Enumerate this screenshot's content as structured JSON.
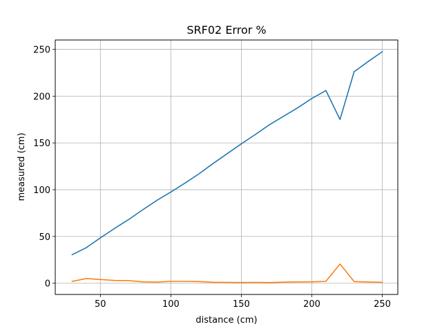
{
  "chart_data": {
    "type": "line",
    "title": "SRF02 Error %",
    "xlabel": "distance (cm)",
    "ylabel": "measured (cm)",
    "xlim": [
      18,
      261
    ],
    "ylim": [
      -12,
      260
    ],
    "xticks": [
      50,
      100,
      150,
      200,
      250
    ],
    "yticks": [
      0,
      50,
      100,
      150,
      200,
      250
    ],
    "grid": true,
    "series": [
      {
        "color": "#1f77b4",
        "x": [
          30,
          40,
          50,
          60,
          70,
          80,
          90,
          100,
          110,
          120,
          130,
          140,
          150,
          160,
          170,
          180,
          190,
          200,
          210,
          220,
          230,
          240,
          250
        ],
        "y": [
          30.5,
          38,
          48.5,
          58.5,
          68,
          78.5,
          88.5,
          97.5,
          107,
          117,
          128,
          138.5,
          149,
          159,
          169.5,
          178.5,
          187.5,
          197.5,
          206,
          175,
          226,
          237,
          247.5
        ]
      },
      {
        "color": "#ff7f0e",
        "x": [
          30,
          40,
          50,
          60,
          70,
          80,
          90,
          100,
          110,
          120,
          130,
          140,
          150,
          160,
          170,
          180,
          190,
          200,
          210,
          220,
          230,
          240,
          250
        ],
        "y": [
          2,
          5,
          4,
          3,
          2.8,
          1.5,
          1.2,
          2,
          2,
          1.8,
          1,
          0.9,
          0.8,
          0.9,
          0.7,
          1.1,
          1.4,
          1.5,
          2,
          20.5,
          1.8,
          1.3,
          1
        ]
      }
    ]
  }
}
